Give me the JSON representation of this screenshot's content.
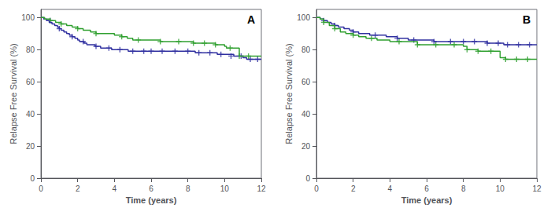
{
  "chart_data": [
    {
      "type": "line",
      "annotation": "A",
      "xlabel": "Time (years)",
      "ylabel": "Relapse Free Survival (%)",
      "xlim": [
        0,
        12
      ],
      "ylim": [
        0,
        105
      ],
      "xticks": [
        0,
        2,
        4,
        6,
        8,
        10,
        12
      ],
      "yticks": [
        0,
        20,
        40,
        60,
        80,
        100
      ],
      "grid": false,
      "series": [
        {
          "type": "step",
          "color": "#3030a0",
          "x": [
            0,
            0.15,
            0.3,
            0.45,
            0.6,
            0.75,
            0.9,
            1.0,
            1.1,
            1.25,
            1.4,
            1.55,
            1.7,
            1.85,
            2.0,
            2.1,
            2.2,
            2.35,
            2.5,
            2.65,
            2.8,
            2.95,
            3.1,
            3.25,
            3.4,
            3.55,
            3.7,
            3.85,
            4.0,
            4.15,
            4.3,
            4.45,
            4.6,
            4.75,
            5.0,
            5.2,
            5.4,
            5.6,
            5.8,
            6.0,
            6.3,
            6.6,
            7.0,
            7.3,
            7.6,
            8.0,
            8.2,
            8.4,
            8.6,
            8.8,
            9.0,
            9.2,
            9.4,
            9.6,
            9.8,
            10.0,
            10.1,
            10.2,
            10.35,
            10.5,
            10.65,
            10.8,
            10.9,
            11.0,
            11.2,
            11.4,
            11.6,
            11.8,
            12.0
          ],
          "values": [
            100,
            99,
            98,
            97,
            96,
            95,
            94,
            93,
            92,
            91,
            90,
            89,
            88,
            87,
            86,
            85,
            85,
            84,
            83,
            83,
            83,
            82,
            82,
            81,
            81,
            81,
            81,
            80,
            80,
            80,
            80,
            80,
            80,
            79,
            79,
            79,
            79,
            79,
            79,
            79,
            79,
            79,
            79,
            79,
            79,
            79,
            79,
            78,
            78,
            78,
            78,
            78,
            78,
            77,
            77,
            77,
            77,
            77,
            77,
            76,
            76,
            76,
            76,
            75,
            74,
            74,
            74,
            74,
            74
          ]
        },
        {
          "type": "step",
          "color": "#30a030",
          "x": [
            0,
            0.2,
            0.5,
            0.8,
            1.1,
            1.4,
            1.7,
            2.0,
            2.3,
            2.7,
            3.0,
            3.5,
            4.0,
            4.4,
            4.7,
            5.0,
            5.3,
            5.7,
            6.0,
            6.5,
            7.0,
            7.5,
            8.0,
            8.3,
            8.6,
            8.9,
            9.0,
            9.2,
            9.5,
            9.8,
            10.0,
            10.1,
            10.3,
            10.6,
            10.8,
            11.0,
            11.3,
            11.6,
            12.0
          ],
          "values": [
            100,
            99,
            98,
            97,
            96,
            95,
            94,
            93,
            92,
            91,
            90,
            90,
            89,
            88,
            87,
            86,
            86,
            86,
            86,
            85,
            85,
            85,
            85,
            84,
            84,
            84,
            84,
            84,
            83,
            83,
            82,
            81,
            81,
            81,
            76,
            76,
            76,
            76,
            76
          ]
        },
        {
          "type": "scatter",
          "marker": "+",
          "color": "#3030a0",
          "x": [
            0.5,
            1.0,
            1.7,
            2.3,
            3.0,
            3.7,
            4.3,
            5.0,
            5.6,
            6.0,
            6.6,
            7.3,
            8.0,
            8.6,
            9.2,
            9.8,
            10.35,
            10.9,
            11.4,
            11.8
          ],
          "values": [
            98,
            93,
            88,
            85,
            82,
            81,
            80,
            79,
            79,
            79,
            79,
            79,
            79,
            78,
            78,
            77,
            76,
            76,
            74,
            74
          ]
        },
        {
          "type": "scatter",
          "marker": "+",
          "color": "#30a030",
          "x": [
            0.5,
            1.1,
            2.0,
            3.0,
            4.4,
            5.3,
            6.5,
            7.5,
            8.3,
            8.9,
            9.5,
            10.3,
            10.8,
            11.3
          ],
          "values": [
            98,
            96,
            93,
            90,
            88,
            86,
            85,
            85,
            84,
            84,
            83,
            81,
            76,
            76
          ]
        }
      ]
    },
    {
      "type": "line",
      "annotation": "B",
      "xlabel": "Time (years)",
      "ylabel": "Relapse Free Survival (%)",
      "xlim": [
        0,
        12
      ],
      "ylim": [
        0,
        105
      ],
      "xticks": [
        0,
        2,
        4,
        6,
        8,
        10,
        12
      ],
      "yticks": [
        0,
        20,
        40,
        60,
        80,
        100
      ],
      "grid": false,
      "series": [
        {
          "type": "step",
          "color": "#3030a0",
          "x": [
            0,
            0.2,
            0.4,
            0.6,
            0.8,
            1.0,
            1.2,
            1.5,
            1.8,
            2.0,
            2.3,
            2.6,
            2.9,
            3.2,
            3.5,
            3.8,
            4.1,
            4.4,
            4.7,
            5.0,
            5.3,
            5.6,
            6.0,
            6.4,
            6.8,
            7.0,
            7.3,
            7.6,
            8.0,
            8.3,
            8.6,
            9.0,
            9.3,
            9.6,
            9.9,
            10.0,
            10.2,
            10.4,
            10.6,
            10.8,
            11.0,
            11.2,
            11.4,
            11.6,
            11.8,
            12.0
          ],
          "values": [
            100,
            99,
            98,
            97,
            96,
            95,
            94,
            93,
            92,
            91,
            90,
            90,
            89,
            89,
            89,
            88,
            88,
            87,
            87,
            86,
            86,
            86,
            86,
            85,
            85,
            85,
            85,
            85,
            85,
            85,
            85,
            85,
            84,
            84,
            84,
            84,
            83,
            83,
            83,
            83,
            83,
            83,
            83,
            83,
            83,
            83
          ]
        },
        {
          "type": "step",
          "color": "#30a030",
          "x": [
            0,
            0.2,
            0.4,
            0.7,
            1.0,
            1.3,
            1.6,
            2.0,
            2.3,
            2.7,
            3.0,
            3.3,
            3.7,
            4.0,
            4.5,
            5.0,
            5.5,
            6.0,
            6.5,
            7.0,
            7.5,
            8.0,
            8.2,
            8.4,
            8.6,
            8.8,
            9.0,
            9.5,
            10.0,
            10.3,
            10.6,
            10.9,
            11.2,
            11.5,
            12.0
          ],
          "values": [
            100,
            99,
            97,
            95,
            93,
            91,
            90,
            89,
            88,
            87,
            87,
            86,
            86,
            85,
            85,
            85,
            83,
            83,
            83,
            83,
            83,
            82,
            80,
            80,
            80,
            79,
            79,
            79,
            75,
            74,
            74,
            74,
            74,
            74,
            74
          ]
        },
        {
          "type": "scatter",
          "marker": "+",
          "color": "#3030a0",
          "x": [
            0.4,
            1.0,
            2.0,
            3.2,
            4.4,
            5.3,
            6.4,
            7.3,
            8.0,
            8.6,
            9.3,
            9.9,
            10.4,
            11.0,
            11.6
          ],
          "values": [
            98,
            95,
            91,
            89,
            87,
            86,
            85,
            85,
            85,
            85,
            84,
            84,
            83,
            83,
            83
          ]
        },
        {
          "type": "scatter",
          "marker": "+",
          "color": "#30a030",
          "x": [
            0.4,
            1.0,
            2.0,
            3.0,
            4.5,
            5.5,
            6.5,
            7.5,
            8.2,
            8.8,
            9.5,
            10.3,
            10.9,
            11.5
          ],
          "values": [
            97,
            93,
            89,
            87,
            85,
            83,
            83,
            83,
            80,
            79,
            79,
            74,
            74,
            74
          ]
        }
      ]
    }
  ]
}
